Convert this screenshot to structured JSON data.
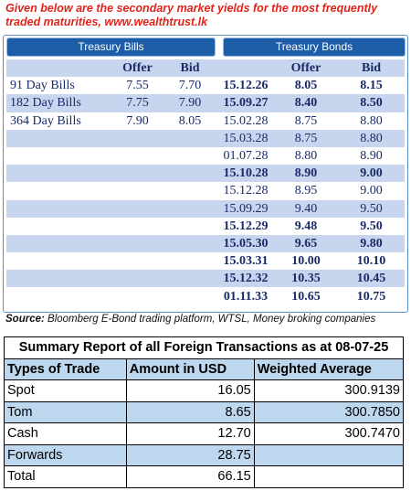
{
  "header": {
    "text": "Given below are the secondary market yields for the most frequently traded maturities, www.wealthtrust.lk"
  },
  "treasury": {
    "bills_title": "Treasury Bills",
    "bonds_title": "Treasury Bonds",
    "bills_columns": [
      "Offer",
      "Bid"
    ],
    "bonds_columns": [
      "Offer",
      "Bid"
    ],
    "bills": [
      {
        "name": "91 Day Bills",
        "offer": "7.55",
        "bid": "7.70"
      },
      {
        "name": "182 Day Bills",
        "offer": "7.75",
        "bid": "7.90"
      },
      {
        "name": "364 Day Bills",
        "offer": "7.90",
        "bid": "8.05"
      }
    ],
    "bonds": [
      {
        "maturity": "15.12.26",
        "offer": "8.05",
        "bid": "8.15",
        "bold": true
      },
      {
        "maturity": "15.09.27",
        "offer": "8.40",
        "bid": "8.50",
        "bold": true
      },
      {
        "maturity": "15.02.28",
        "offer": "8.75",
        "bid": "8.80",
        "bold": false
      },
      {
        "maturity": "15.03.28",
        "offer": "8.75",
        "bid": "8.80",
        "bold": false
      },
      {
        "maturity": "01.07.28",
        "offer": "8.80",
        "bid": "8.90",
        "bold": false
      },
      {
        "maturity": "15.10.28",
        "offer": "8.90",
        "bid": "9.00",
        "bold": true
      },
      {
        "maturity": "15.12.28",
        "offer": "8.95",
        "bid": "9.00",
        "bold": false
      },
      {
        "maturity": "15.09.29",
        "offer": "9.40",
        "bid": "9.50",
        "bold": false
      },
      {
        "maturity": "15.12.29",
        "offer": "9.48",
        "bid": "9.50",
        "bold": true
      },
      {
        "maturity": "15.05.30",
        "offer": "9.65",
        "bid": "9.80",
        "bold": true
      },
      {
        "maturity": "15.03.31",
        "offer": "10.00",
        "bid": "10.10",
        "bold": true
      },
      {
        "maturity": "15.12.32",
        "offer": "10.35",
        "bid": "10.45",
        "bold": true
      },
      {
        "maturity": "01.11.33",
        "offer": "10.65",
        "bid": "10.75",
        "bold": true
      }
    ],
    "source_label": "Source:",
    "source": "Bloomberg E-Bond trading platform, WTSL, Money broking companies"
  },
  "summary": {
    "title": "Summary Report of all Foreign Transactions as at 08-07-25",
    "columns": [
      "Types of Trade",
      "Amount in USD",
      "Weighted Average"
    ],
    "rows": [
      [
        "Spot",
        "16.05",
        "300.9139"
      ],
      [
        "Tom",
        "8.65",
        "300.7850"
      ],
      [
        "Cash",
        "12.70",
        "300.7470"
      ],
      [
        "Forwards",
        "28.75",
        null
      ],
      [
        "Total",
        "66.15",
        null
      ]
    ]
  }
}
